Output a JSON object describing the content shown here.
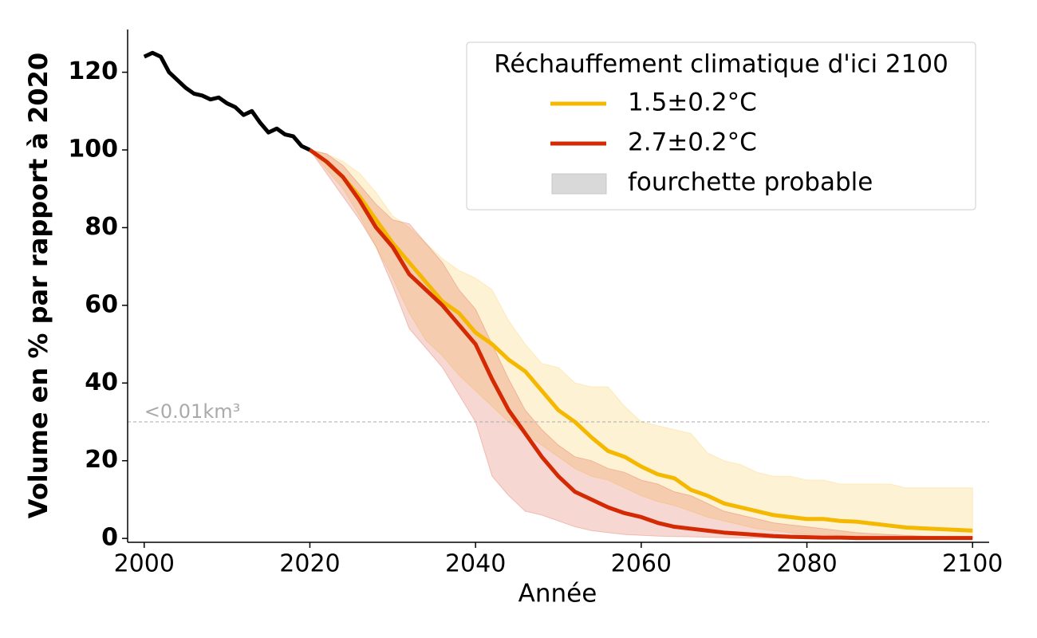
{
  "chart_data": {
    "type": "line",
    "x_label": "Année",
    "y_label": "Volume en % par rapport à 2020",
    "xlim": [
      1998,
      2102
    ],
    "ylim": [
      -1,
      131
    ],
    "xticks": [
      2000,
      2020,
      2040,
      2060,
      2080,
      2100
    ],
    "yticks": [
      0,
      20,
      40,
      60,
      80,
      100,
      120
    ],
    "history": {
      "color": "#000000",
      "x": [
        2000,
        2001,
        2002,
        2003,
        2004,
        2005,
        2006,
        2007,
        2008,
        2009,
        2010,
        2011,
        2012,
        2013,
        2014,
        2015,
        2016,
        2017,
        2018,
        2019,
        2020
      ],
      "values": [
        124,
        125,
        124,
        120,
        118,
        116,
        114.5,
        114,
        113,
        113.5,
        112,
        111,
        109,
        110,
        107,
        104.5,
        105.5,
        104,
        103.5,
        101,
        100
      ]
    },
    "x": [
      2020,
      2022,
      2024,
      2026,
      2028,
      2030,
      2032,
      2034,
      2036,
      2038,
      2040,
      2042,
      2044,
      2046,
      2048,
      2050,
      2052,
      2054,
      2056,
      2058,
      2060,
      2062,
      2064,
      2066,
      2068,
      2070,
      2072,
      2074,
      2076,
      2078,
      2080,
      2082,
      2084,
      2086,
      2088,
      2090,
      2092,
      2094,
      2096,
      2098,
      2100
    ],
    "series": [
      {
        "name": "1.5±0.2°C",
        "color": "#f5b800",
        "band_color": "#fbc02d",
        "values": [
          100,
          97,
          93,
          88,
          82,
          76,
          71,
          66,
          61,
          58,
          53,
          50,
          46,
          43,
          38,
          33,
          30,
          26,
          22.5,
          21,
          18.5,
          16.5,
          15.5,
          12.5,
          11,
          9,
          8,
          7,
          6,
          5.5,
          5,
          5,
          4.5,
          4.3,
          3.8,
          3.3,
          2.8,
          2.6,
          2.4,
          2.2,
          2
        ],
        "upper": [
          100,
          99,
          97,
          94,
          89,
          83,
          80,
          76,
          72,
          69,
          67,
          64,
          56,
          50,
          45,
          44,
          40,
          39,
          39,
          34,
          30,
          29,
          28,
          27,
          22,
          20,
          19,
          17,
          16,
          16,
          15,
          15,
          14,
          14,
          14,
          14,
          13,
          13,
          13,
          13,
          13
        ],
        "lower": [
          100,
          95,
          90,
          83,
          75,
          67,
          58,
          51,
          47,
          42,
          38,
          34,
          30,
          27,
          24,
          21,
          18,
          16,
          15,
          13,
          11,
          9.5,
          8.5,
          7,
          5.5,
          4.5,
          3.5,
          2.5,
          2,
          1.5,
          1,
          1,
          0.8,
          0.6,
          0.5,
          0.4,
          0.3,
          0.3,
          0.3,
          0.2,
          0.2
        ]
      },
      {
        "name": "2.7±0.2°C",
        "color": "#d42a04",
        "band_color": "#d6361a",
        "values": [
          100,
          97,
          93,
          87,
          80,
          75,
          68,
          64,
          60,
          55,
          50,
          41,
          33,
          27,
          21,
          16,
          12,
          10,
          8,
          6.5,
          5.5,
          4,
          3,
          2.5,
          2,
          1.5,
          1.2,
          0.9,
          0.6,
          0.4,
          0.3,
          0.2,
          0.2,
          0.1,
          0.1,
          0.1,
          0.1,
          0.1,
          0.1,
          0.1,
          0.1
        ],
        "upper": [
          100,
          99,
          96,
          91,
          86,
          82,
          81,
          76,
          71,
          64,
          59,
          50,
          41,
          33,
          28,
          24,
          21,
          20,
          18,
          17,
          15,
          14,
          12,
          11,
          9,
          7,
          6,
          5,
          4,
          3.5,
          3,
          2.5,
          2,
          1.5,
          1.2,
          1,
          0.8,
          0.6,
          0.5,
          0.4,
          0.3
        ],
        "lower": [
          100,
          94,
          88,
          82,
          75,
          65,
          54,
          49,
          44,
          37,
          30,
          16,
          11,
          7,
          6,
          4.5,
          3,
          2,
          1.5,
          1,
          0.8,
          0.6,
          0.5,
          0.4,
          0.3,
          0.2,
          0.1,
          0.1,
          0.1,
          0,
          0,
          0,
          0,
          0,
          0,
          0,
          0,
          0,
          0,
          0,
          0
        ]
      }
    ],
    "band_label": "fourchette probable",
    "band_legend_color": "#d9d9d9",
    "threshold": {
      "value": 30,
      "label": "<0.01km³",
      "color": "#aaaaaa"
    },
    "legend": {
      "title": "Réchauffement climatique d'ici 2100",
      "position": "upper right"
    }
  }
}
